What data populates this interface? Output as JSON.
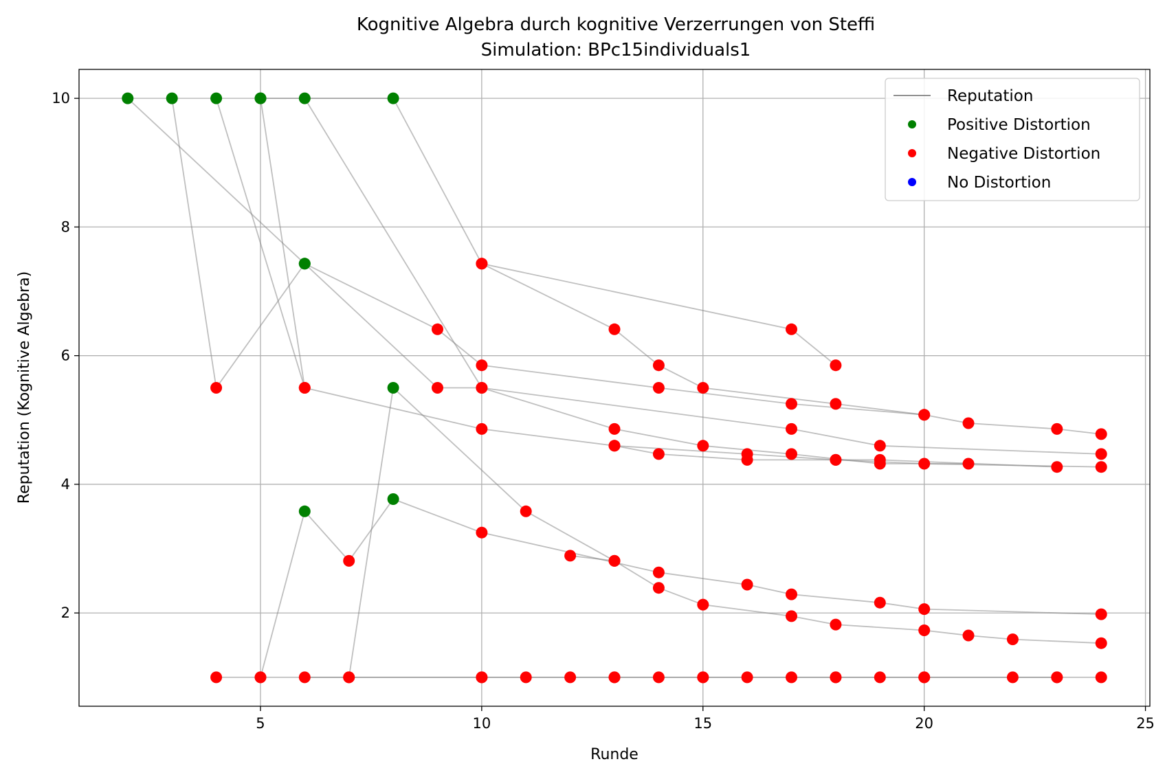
{
  "chart_data": {
    "type": "scatter",
    "title": "Kognitive Algebra durch kognitive Verzerrungen von Steffi",
    "subtitle": "Simulation: BPc15individuals1",
    "xlabel": "Runde",
    "ylabel": "Reputation (Kognitive Algebra)",
    "xlim": [
      0.9,
      25.1
    ],
    "ylim": [
      0.55,
      10.45
    ],
    "xticks": [
      5,
      10,
      15,
      20,
      25
    ],
    "yticks": [
      2,
      4,
      6,
      8,
      10
    ],
    "grid": true,
    "legend_position": "top-right",
    "legend": [
      {
        "label": "Reputation",
        "kind": "line",
        "color": "#808080"
      },
      {
        "label": "Positive Distortion",
        "kind": "marker",
        "color": "#008000"
      },
      {
        "label": "Negative Distortion",
        "kind": "marker",
        "color": "#ff0000"
      },
      {
        "label": "No Distortion",
        "kind": "marker",
        "color": "#0000ff"
      }
    ],
    "colors": {
      "positive": "#008000",
      "negative": "#ff0000",
      "none": "#0000ff",
      "line": "#808080"
    },
    "series": [
      {
        "points": [
          [
            2,
            10,
            "p"
          ],
          [
            6,
            7.43,
            "p"
          ],
          [
            9,
            6.41,
            "n"
          ],
          [
            10,
            5.85,
            "n"
          ],
          [
            14,
            5.5,
            "n"
          ],
          [
            17,
            5.25,
            "n"
          ],
          [
            20,
            5.08,
            "n"
          ],
          [
            21,
            4.95,
            "n"
          ],
          [
            23,
            4.86,
            "n"
          ],
          [
            24,
            4.78,
            "n"
          ]
        ]
      },
      {
        "points": [
          [
            3,
            10,
            "p"
          ],
          [
            4,
            5.5,
            "n"
          ],
          [
            6,
            7.43,
            "p"
          ],
          [
            9,
            5.5,
            "n"
          ],
          [
            10,
            5.5,
            "n"
          ],
          [
            17,
            4.86,
            "n"
          ],
          [
            19,
            4.6,
            "n"
          ],
          [
            24,
            4.47,
            "n"
          ]
        ]
      },
      {
        "points": [
          [
            4,
            10,
            "p"
          ],
          [
            6,
            5.5,
            "n"
          ],
          [
            10,
            4.86,
            "n"
          ],
          [
            13,
            4.6,
            "n"
          ],
          [
            16,
            4.47,
            "n"
          ],
          [
            18,
            4.38,
            "n"
          ],
          [
            20,
            4.32,
            "n"
          ],
          [
            24,
            4.27,
            "n"
          ]
        ]
      },
      {
        "points": [
          [
            5,
            10,
            "p"
          ],
          [
            6,
            5.5,
            "n"
          ]
        ]
      },
      {
        "points": [
          [
            5,
            10,
            "p"
          ],
          [
            8,
            10,
            "p"
          ],
          [
            10,
            7.43,
            "n"
          ],
          [
            17,
            6.41,
            "n"
          ],
          [
            18,
            5.85,
            "n"
          ]
        ]
      },
      {
        "points": [
          [
            6,
            10,
            "p"
          ],
          [
            10,
            5.5,
            "n"
          ],
          [
            13,
            4.86,
            "n"
          ],
          [
            15,
            4.6,
            "n"
          ],
          [
            17,
            4.47,
            "n"
          ],
          [
            19,
            4.32,
            "n"
          ],
          [
            21,
            4.32,
            "n"
          ]
        ]
      },
      {
        "points": [
          [
            10,
            7.43,
            "n"
          ],
          [
            13,
            6.41,
            "n"
          ],
          [
            14,
            5.85,
            "n"
          ],
          [
            15,
            5.5,
            "n"
          ],
          [
            18,
            5.25,
            "n"
          ],
          [
            20,
            5.08,
            "n"
          ]
        ]
      },
      {
        "points": [
          [
            13,
            4.6,
            "n"
          ],
          [
            14,
            4.47,
            "n"
          ],
          [
            16,
            4.38,
            "n"
          ],
          [
            18,
            4.38,
            "n"
          ],
          [
            19,
            4.38,
            "n"
          ],
          [
            23,
            4.27,
            "n"
          ]
        ]
      },
      {
        "points": [
          [
            4,
            1,
            "n"
          ],
          [
            5,
            1,
            "n"
          ],
          [
            6,
            3.58,
            "p"
          ],
          [
            7,
            2.81,
            "n"
          ],
          [
            8,
            3.77,
            "p"
          ],
          [
            10,
            3.25,
            "n"
          ],
          [
            14,
            2.63,
            "n"
          ],
          [
            16,
            2.44,
            "n"
          ],
          [
            17,
            2.29,
            "n"
          ],
          [
            19,
            2.16,
            "n"
          ],
          [
            20,
            2.06,
            "n"
          ],
          [
            24,
            1.98,
            "n"
          ]
        ]
      },
      {
        "points": [
          [
            6,
            1,
            "n"
          ],
          [
            7,
            1,
            "n"
          ],
          [
            8,
            5.5,
            "p"
          ],
          [
            11,
            3.58,
            "n"
          ],
          [
            13,
            2.81,
            "n"
          ],
          [
            14,
            2.39,
            "n"
          ],
          [
            15,
            2.13,
            "n"
          ],
          [
            17,
            1.95,
            "n"
          ],
          [
            18,
            1.82,
            "n"
          ],
          [
            20,
            1.73,
            "n"
          ],
          [
            21,
            1.65,
            "n"
          ],
          [
            22,
            1.59,
            "n"
          ],
          [
            24,
            1.53,
            "n"
          ]
        ]
      },
      {
        "points": [
          [
            12,
            2.89,
            "n"
          ],
          [
            13,
            2.81,
            "n"
          ]
        ]
      },
      {
        "points": [
          [
            5,
            1,
            "n"
          ],
          [
            10,
            1,
            "n"
          ],
          [
            11,
            1,
            "n"
          ],
          [
            12,
            1,
            "n"
          ],
          [
            13,
            1,
            "n"
          ],
          [
            14,
            1,
            "n"
          ],
          [
            15,
            1,
            "n"
          ],
          [
            16,
            1,
            "n"
          ],
          [
            17,
            1,
            "n"
          ],
          [
            18,
            1,
            "n"
          ],
          [
            19,
            1,
            "n"
          ],
          [
            20,
            1,
            "n"
          ],
          [
            22,
            1,
            "n"
          ],
          [
            23,
            1,
            "n"
          ],
          [
            24,
            1,
            "n"
          ]
        ]
      },
      {
        "points": [
          [
            7,
            1,
            "n"
          ],
          [
            10,
            1,
            "n"
          ],
          [
            13,
            1,
            "n"
          ],
          [
            15,
            1,
            "n"
          ],
          [
            18,
            1,
            "n"
          ],
          [
            20,
            1,
            "n"
          ],
          [
            23,
            1,
            "n"
          ]
        ]
      }
    ]
  }
}
